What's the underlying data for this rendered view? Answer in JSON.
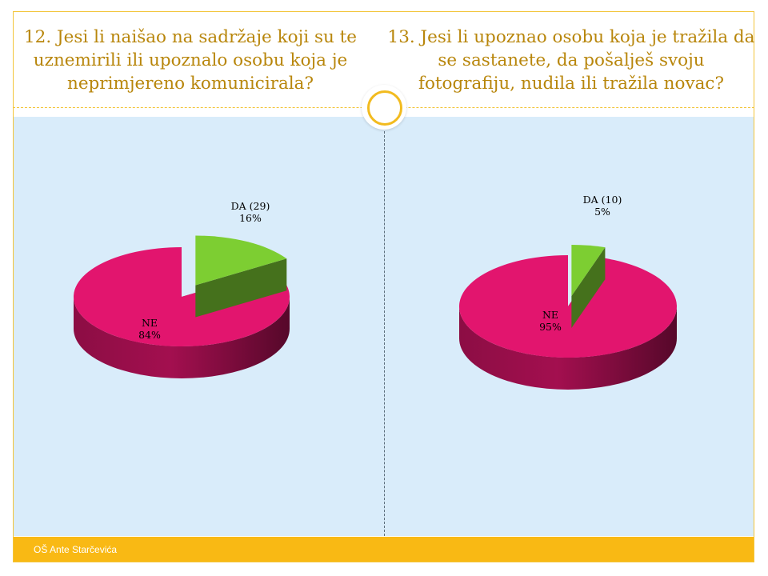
{
  "slide": {
    "left_title": "12. Jesi li naišao na sadržaje koji su te uznemirili ili upoznalo osobu koja je neprimjereno komunicirala?",
    "right_title": "13. Jesi li upoznao osobu koja je tražila da se sastanete, da pošalješ svoju fotografiju, nudila ili tražila novac?",
    "footer": "OŠ Ante Starčevića"
  },
  "colors": {
    "da": "#7dce32",
    "ne": "#e2156e",
    "accent": "#f9b914",
    "panel": "#d9ecfa"
  },
  "chart_data": [
    {
      "type": "pie",
      "title": "12. Jesi li naišao na sadržaje koji su te uznemirili ili upoznalo osobu koja je neprimjereno komunicirala?",
      "slices": [
        {
          "key": "da",
          "label": "DA (29)",
          "pct_label": "16%",
          "value": 16,
          "count": 29,
          "exploded": true
        },
        {
          "key": "ne",
          "label": "NE",
          "pct_label": "84%",
          "value": 84,
          "exploded": false
        }
      ]
    },
    {
      "type": "pie",
      "title": "13. Jesi li upoznao osobu koja je tražila da se sastanete, da pošalješ svoju fotografiju, nudila ili tražila novac?",
      "slices": [
        {
          "key": "da",
          "label": "DA (10)",
          "pct_label": "5%",
          "value": 5,
          "count": 10,
          "exploded": true
        },
        {
          "key": "ne",
          "label": "NE",
          "pct_label": "95%",
          "value": 95,
          "exploded": false
        }
      ]
    }
  ]
}
